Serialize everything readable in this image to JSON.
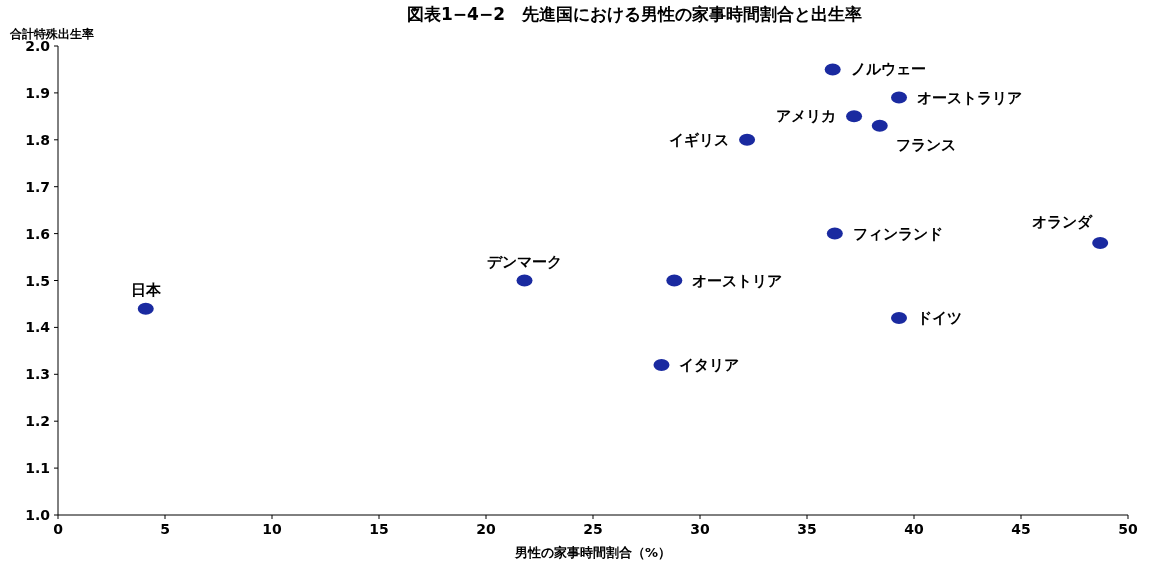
{
  "chart_data": {
    "type": "scatter",
    "title": "図表1−4−2　先進国における男性の家事時間割合と出生率",
    "xlabel": "男性の家事時間割合（%）",
    "ylabel": "合計特殊出生率",
    "series": [
      {
        "color": "#1a2aa0",
        "x": [
          4.1,
          21.8,
          28.2,
          28.8,
          32.2,
          36.2,
          36.3,
          37.2,
          38.4,
          39.3,
          39.3,
          48.7
        ],
        "values": [
          1.44,
          1.5,
          1.32,
          1.5,
          1.8,
          1.95,
          1.6,
          1.85,
          1.83,
          1.89,
          1.42,
          1.58
        ]
      }
    ],
    "annotations": [
      {
        "text": "日本",
        "x": 4.1,
        "y": 1.44
      },
      {
        "text": "デンマーク",
        "x": 21.8,
        "y": 1.5
      },
      {
        "text": "イタリア",
        "x": 28.2,
        "y": 1.32
      },
      {
        "text": "オーストリア",
        "x": 28.8,
        "y": 1.5
      },
      {
        "text": "イギリス",
        "x": 32.2,
        "y": 1.8
      },
      {
        "text": "ノルウェー",
        "x": 36.2,
        "y": 1.95
      },
      {
        "text": "フィンランド",
        "x": 36.3,
        "y": 1.6
      },
      {
        "text": "アメリカ",
        "x": 37.2,
        "y": 1.85
      },
      {
        "text": "フランス",
        "x": 38.4,
        "y": 1.83
      },
      {
        "text": "オーストラリア",
        "x": 39.3,
        "y": 1.89
      },
      {
        "text": "ドイツ",
        "x": 39.3,
        "y": 1.42
      },
      {
        "text": "オランダ",
        "x": 48.7,
        "y": 1.58
      }
    ],
    "xlim": [
      0,
      50
    ],
    "xticks": [
      0,
      5,
      10,
      15,
      20,
      25,
      30,
      35,
      40,
      45,
      50
    ],
    "ylim": [
      1.0,
      2.0
    ],
    "yticks": [
      {
        "value": 1.0,
        "label": "1.0"
      },
      1.1,
      1.2,
      1.3,
      1.4,
      1.5,
      1.6,
      1.7,
      1.8,
      1.9,
      {
        "value": 2.0,
        "label": "2.0"
      }
    ],
    "grid": false,
    "marker": "circle"
  }
}
